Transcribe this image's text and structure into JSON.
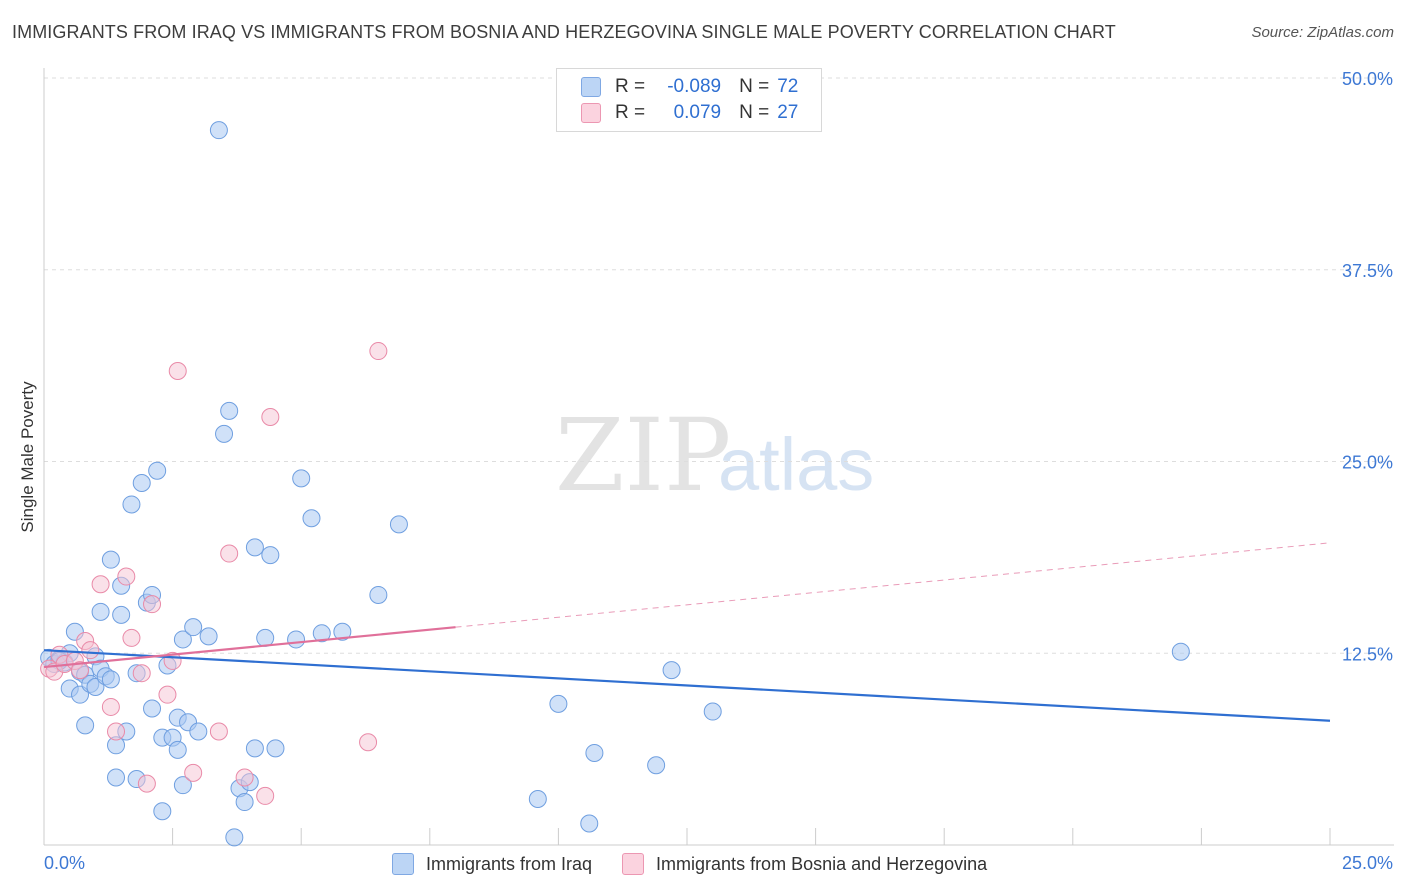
{
  "title": "IMMIGRANTS FROM IRAQ VS IMMIGRANTS FROM BOSNIA AND HERZEGOVINA SINGLE MALE POVERTY CORRELATION CHART",
  "source": "Source: ZipAtlas.com",
  "watermark": {
    "part1": "ZIP",
    "part2": "atlas"
  },
  "colors": {
    "iraq_fill": "#a9c8f2",
    "iraq_stroke": "#6f9fe0",
    "iraq_line": "#2f6fd1",
    "bosnia_fill": "#f6c3d3",
    "bosnia_stroke": "#e98aa8",
    "bosnia_line": "#e0709a",
    "tick_text": "#3d78d4",
    "grid": "#dddddd"
  },
  "legend_top": {
    "iraq": {
      "r_label": "R =",
      "r_value": "-0.089",
      "n_label": "N =",
      "n_value": "72"
    },
    "bosnia": {
      "r_label": "R =",
      "r_value": "0.079",
      "n_label": "N =",
      "n_value": "27"
    }
  },
  "legend_bottom": {
    "iraq": "Immigrants from Iraq",
    "bosnia": "Immigrants from Bosnia and Herzegovina"
  },
  "chart_data": {
    "type": "scatter",
    "title": "IMMIGRANTS FROM IRAQ VS IMMIGRANTS FROM BOSNIA AND HERZEGOVINA SINGLE MALE POVERTY CORRELATION CHART",
    "xlabel": "",
    "ylabel": "Single Male Poverty",
    "xlim": [
      0,
      25
    ],
    "ylim": [
      0,
      50
    ],
    "x_tick_labels": [
      "0.0%",
      "25.0%"
    ],
    "y_ticks": [
      12.5,
      25.0,
      37.5,
      50.0
    ],
    "y_tick_labels": [
      "12.5%",
      "25.0%",
      "37.5%",
      "50.0%"
    ],
    "grid": true,
    "legend_position": "top-center",
    "series": [
      {
        "name": "Immigrants from Iraq",
        "color": "#a9c8f2",
        "r": -0.089,
        "n": 72,
        "trend": {
          "x": [
            0,
            25
          ],
          "y": [
            12.7,
            8.1
          ]
        },
        "points": [
          [
            0.1,
            12.2
          ],
          [
            0.2,
            11.8
          ],
          [
            0.3,
            12.1
          ],
          [
            0.4,
            11.9
          ],
          [
            0.5,
            12.5
          ],
          [
            0.5,
            10.2
          ],
          [
            0.6,
            13.9
          ],
          [
            0.7,
            11.3
          ],
          [
            0.7,
            9.8
          ],
          [
            0.8,
            11.1
          ],
          [
            0.8,
            7.8
          ],
          [
            0.9,
            10.5
          ],
          [
            1.0,
            12.3
          ],
          [
            1.0,
            10.3
          ],
          [
            1.1,
            11.5
          ],
          [
            1.1,
            15.2
          ],
          [
            1.2,
            11.0
          ],
          [
            1.3,
            18.6
          ],
          [
            1.3,
            10.8
          ],
          [
            1.4,
            6.5
          ],
          [
            1.4,
            4.4
          ],
          [
            1.5,
            16.9
          ],
          [
            1.5,
            15.0
          ],
          [
            1.6,
            7.4
          ],
          [
            1.7,
            22.2
          ],
          [
            1.8,
            4.3
          ],
          [
            1.8,
            11.2
          ],
          [
            1.9,
            23.6
          ],
          [
            2.0,
            15.8
          ],
          [
            2.1,
            16.3
          ],
          [
            2.1,
            8.9
          ],
          [
            2.2,
            24.4
          ],
          [
            2.3,
            7.0
          ],
          [
            2.3,
            2.2
          ],
          [
            2.4,
            11.7
          ],
          [
            2.5,
            7.0
          ],
          [
            2.6,
            8.3
          ],
          [
            2.6,
            6.2
          ],
          [
            2.7,
            13.4
          ],
          [
            2.7,
            3.9
          ],
          [
            2.8,
            8.0
          ],
          [
            2.9,
            14.2
          ],
          [
            3.0,
            7.4
          ],
          [
            3.2,
            13.6
          ],
          [
            3.4,
            46.6
          ],
          [
            3.5,
            26.8
          ],
          [
            3.6,
            28.3
          ],
          [
            3.7,
            0.5
          ],
          [
            3.8,
            3.7
          ],
          [
            3.9,
            2.8
          ],
          [
            4.0,
            4.1
          ],
          [
            4.1,
            19.4
          ],
          [
            4.1,
            6.3
          ],
          [
            4.3,
            13.5
          ],
          [
            4.4,
            18.9
          ],
          [
            4.5,
            6.3
          ],
          [
            4.9,
            13.4
          ],
          [
            5.0,
            23.9
          ],
          [
            5.2,
            21.3
          ],
          [
            5.4,
            13.8
          ],
          [
            5.8,
            13.9
          ],
          [
            6.5,
            16.3
          ],
          [
            6.9,
            20.9
          ],
          [
            9.6,
            3.0
          ],
          [
            10.0,
            9.2
          ],
          [
            10.6,
            1.4
          ],
          [
            10.7,
            6.0
          ],
          [
            11.9,
            5.2
          ],
          [
            12.2,
            11.4
          ],
          [
            13.0,
            8.7
          ],
          [
            22.1,
            12.6
          ],
          [
            0.3,
            12.0
          ]
        ]
      },
      {
        "name": "Immigrants from Bosnia and Herzegovina",
        "color": "#f6c3d3",
        "r": 0.079,
        "n": 27,
        "trend": {
          "x": [
            0,
            8
          ],
          "y": [
            11.6,
            14.2
          ]
        },
        "trend_extended": {
          "x": [
            8,
            25
          ],
          "y": [
            14.2,
            19.7
          ]
        },
        "points": [
          [
            0.1,
            11.5
          ],
          [
            0.2,
            11.3
          ],
          [
            0.3,
            12.4
          ],
          [
            0.4,
            11.8
          ],
          [
            0.6,
            12.0
          ],
          [
            0.7,
            11.4
          ],
          [
            0.8,
            13.3
          ],
          [
            0.9,
            12.7
          ],
          [
            1.1,
            17.0
          ],
          [
            1.3,
            9.0
          ],
          [
            1.4,
            7.4
          ],
          [
            1.6,
            17.5
          ],
          [
            1.7,
            13.5
          ],
          [
            1.9,
            11.2
          ],
          [
            2.0,
            4.0
          ],
          [
            2.1,
            15.7
          ],
          [
            2.4,
            9.8
          ],
          [
            2.5,
            12.0
          ],
          [
            2.6,
            30.9
          ],
          [
            2.9,
            4.7
          ],
          [
            3.4,
            7.4
          ],
          [
            3.6,
            19.0
          ],
          [
            3.9,
            4.4
          ],
          [
            4.3,
            3.2
          ],
          [
            4.4,
            27.9
          ],
          [
            6.3,
            6.7
          ],
          [
            6.5,
            32.2
          ]
        ]
      }
    ]
  }
}
